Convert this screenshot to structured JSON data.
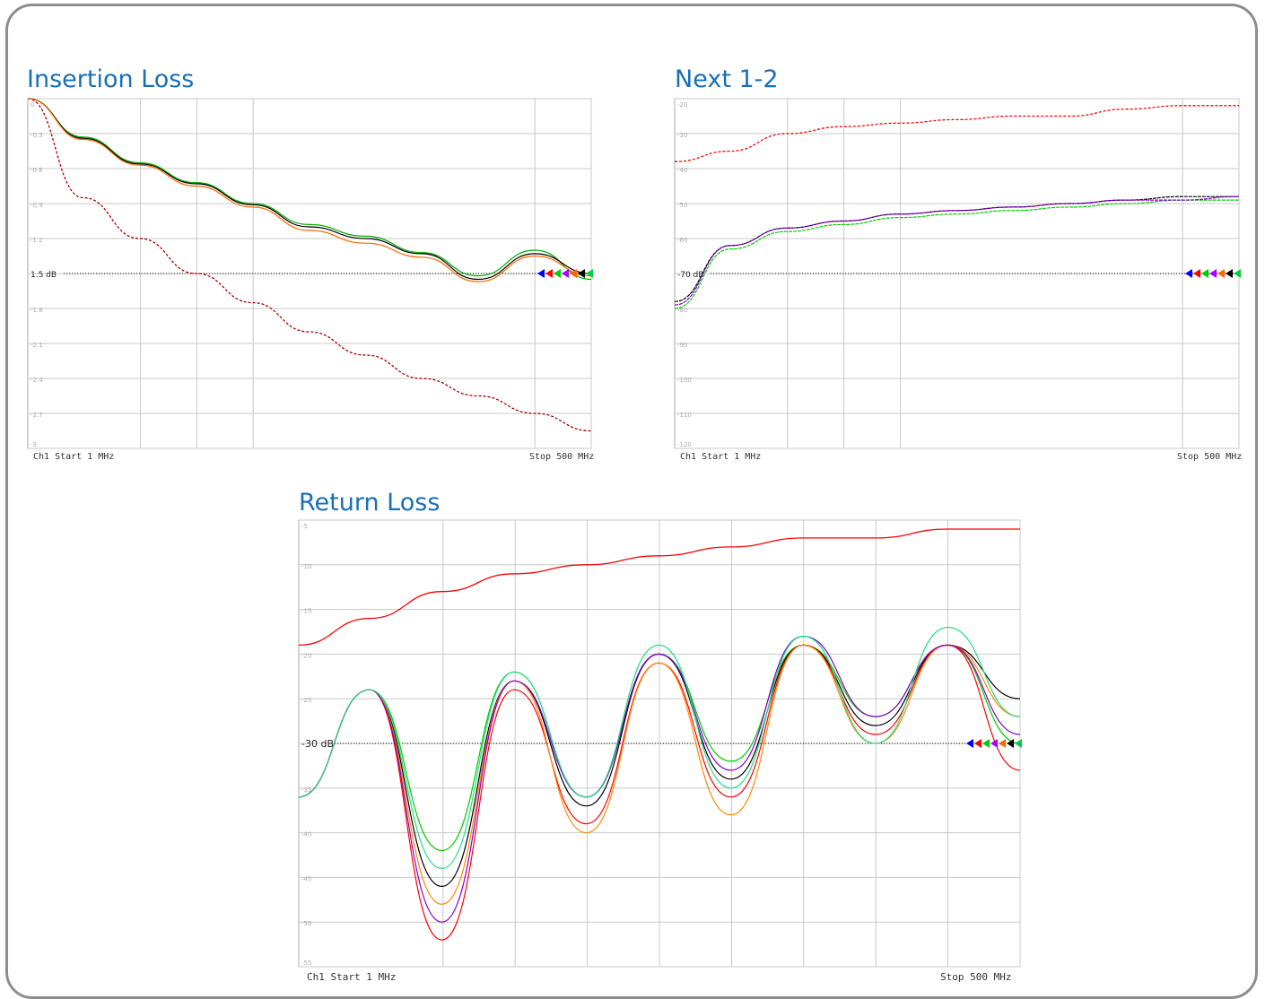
{
  "chart_data": [
    {
      "type": "line",
      "title": "Insertion Loss",
      "reference_label": "1.5 dB",
      "reference_value": 1.5,
      "start_label": "Ch1  Start  1 MHz",
      "stop_label": "Stop  500 MHz",
      "ylim": [
        0,
        3
      ],
      "y_reversed": true,
      "y_ticks": [
        "0",
        "-0.3",
        "-0.6",
        "-0.9",
        "-1.2",
        "1.5 dB",
        "-1.8",
        "-2.1",
        "-2.4",
        "-2.7",
        "-3"
      ],
      "x": [
        1,
        50,
        100,
        150,
        200,
        250,
        300,
        350,
        400,
        450,
        500
      ],
      "series": [
        {
          "color": "#00aa00",
          "values": [
            0,
            0.33,
            0.55,
            0.72,
            0.9,
            1.08,
            1.18,
            1.32,
            1.52,
            1.3,
            1.55
          ]
        },
        {
          "color": "#000000",
          "values": [
            0,
            0.34,
            0.56,
            0.73,
            0.91,
            1.1,
            1.2,
            1.33,
            1.55,
            1.33,
            1.5
          ]
        },
        {
          "color": "#ff6600",
          "values": [
            0,
            0.35,
            0.57,
            0.75,
            0.93,
            1.13,
            1.24,
            1.36,
            1.57,
            1.35,
            1.52
          ]
        }
      ],
      "limit": {
        "color": "#aa0000",
        "values": [
          0,
          0.85,
          1.2,
          1.5,
          1.75,
          2.0,
          2.2,
          2.4,
          2.55,
          2.7,
          2.85
        ]
      }
    },
    {
      "type": "line",
      "title": "Next 1-2",
      "reference_label": "-70 dB",
      "reference_value": -70,
      "start_label": "Ch1  Start  1 MHz",
      "stop_label": "Stop  500 MHz",
      "ylim": [
        -120,
        -20
      ],
      "y_ticks": [
        "-20",
        "-30",
        "-40",
        "-50",
        "-60",
        "-70 dB",
        "-80",
        "-90",
        "-100",
        "-110",
        "-120"
      ],
      "x": [
        1,
        50,
        100,
        150,
        200,
        250,
        300,
        350,
        400,
        450,
        500
      ],
      "series": [
        {
          "color": "#000000",
          "values": [
            -78,
            -62,
            -57,
            -55,
            -53,
            -52,
            -51,
            -50,
            -49,
            -48,
            -48
          ]
        },
        {
          "color": "#00cc00",
          "values": [
            -80,
            -63,
            -58,
            -56,
            -54,
            -53,
            -52,
            -51,
            -50,
            -49,
            -49
          ]
        },
        {
          "color": "#8800cc",
          "values": [
            -79,
            -62,
            -57,
            -55,
            -53,
            -52,
            -51,
            -50,
            -49,
            -49,
            -48
          ]
        }
      ],
      "limit": {
        "color": "#ff0000",
        "values": [
          -38,
          -35,
          -30,
          -28,
          -27,
          -26,
          -25,
          -25,
          -23,
          -22,
          -22
        ]
      }
    },
    {
      "type": "line",
      "title": "Return Loss",
      "reference_label": "-30 dB",
      "reference_value": -30,
      "start_label": "Ch1  Start  1 MHz",
      "stop_label": "Stop  500 MHz",
      "ylim": [
        -55,
        -5
      ],
      "y_ticks": [
        "-5",
        "-10",
        "-15",
        "-20",
        "-25",
        "-30 dB",
        "-35",
        "-40",
        "-45",
        "-50",
        "-55"
      ],
      "x": [
        1,
        50,
        100,
        150,
        200,
        250,
        300,
        350,
        400,
        450,
        500
      ],
      "series": [
        {
          "color": "#00cc00",
          "values": [
            -36,
            -24,
            -42,
            -22,
            -36,
            -20,
            -32,
            -19,
            -27,
            -19,
            -30
          ]
        },
        {
          "color": "#000000",
          "values": [
            -36,
            -24,
            -46,
            -23,
            -37,
            -20,
            -34,
            -19,
            -28,
            -19,
            -25
          ]
        },
        {
          "color": "#ff0000",
          "values": [
            -36,
            -24,
            -52,
            -24,
            -39,
            -21,
            -36,
            -19,
            -29,
            -19,
            -33
          ]
        },
        {
          "color": "#ff8800",
          "values": [
            -36,
            -24,
            -48,
            -23,
            -40,
            -21,
            -38,
            -19,
            -30,
            -19,
            -27
          ]
        },
        {
          "color": "#8800cc",
          "values": [
            -36,
            -24,
            -50,
            -23,
            -36,
            -20,
            -33,
            -18,
            -27,
            -19,
            -29
          ]
        },
        {
          "color": "#22dd88",
          "values": [
            -36,
            -24,
            -44,
            -22,
            -36,
            -19,
            -35,
            -18,
            -30,
            -17,
            -27
          ]
        }
      ],
      "limit": {
        "color": "#ff0000",
        "values": [
          -19,
          -16,
          -13,
          -11,
          -10,
          -9,
          -8,
          -7,
          -7,
          -6,
          -6
        ]
      }
    }
  ]
}
